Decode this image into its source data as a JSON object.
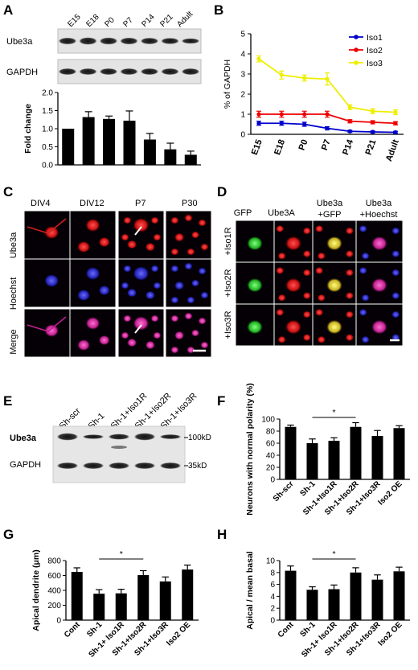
{
  "panels": {
    "A": {
      "label": "A"
    },
    "B": {
      "label": "B"
    },
    "C": {
      "label": "C"
    },
    "D": {
      "label": "D"
    },
    "E": {
      "label": "E"
    },
    "F": {
      "label": "F"
    },
    "G": {
      "label": "G"
    },
    "H": {
      "label": "H"
    }
  },
  "panel_a_blot": {
    "lanes": [
      "E15",
      "E18",
      "P0",
      "P7",
      "P14",
      "P21",
      "Adult"
    ],
    "row_labels": [
      "Ube3a",
      "GAPDH"
    ]
  },
  "panel_c": {
    "columns": [
      "DIV4",
      "DIV12",
      "P7",
      "P30"
    ],
    "rows": [
      "Ube3a",
      "Hoechst",
      "Merge"
    ]
  },
  "panel_d": {
    "columns": [
      {
        "line1": "GFP",
        "line2": ""
      },
      {
        "line1": "Ube3A",
        "line2": ""
      },
      {
        "line1": "Ube3a",
        "line2": "+GFP"
      },
      {
        "line1": "Ube3a",
        "line2": "+Hoechst"
      }
    ],
    "rows": [
      "+Iso1R",
      "+Iso2R",
      "+Iso3R"
    ]
  },
  "panel_e_blot": {
    "lanes": [
      "Sh-scr",
      "Sh-1",
      "Sh-1+Iso1R",
      "Sh-1+Iso2R",
      "Sh-1+Iso3R"
    ],
    "row_labels": [
      "Ube3a",
      "GAPDH"
    ],
    "markers": [
      "100kD",
      "35kD"
    ]
  },
  "chart_data": [
    {
      "id": "A",
      "type": "bar",
      "categories": [
        "E15",
        "E18",
        "P0",
        "P7",
        "P14",
        "P21",
        "Adult"
      ],
      "values": [
        1.0,
        1.32,
        1.27,
        1.22,
        0.7,
        0.43,
        0.28
      ],
      "errors": [
        0.0,
        0.15,
        0.08,
        0.27,
        0.17,
        0.17,
        0.1
      ],
      "ylabel": "Fold change",
      "ylim": [
        0,
        2.0
      ],
      "yticks": [
        "0.0",
        "0.5",
        "1.0",
        "1.5",
        "2.0"
      ],
      "color": "#000000"
    },
    {
      "id": "B",
      "type": "line",
      "x": [
        "E15",
        "E18",
        "P0",
        "P7",
        "P14",
        "P21",
        "Adult"
      ],
      "ylabel": "% of GAPDH",
      "ylim": [
        0,
        5
      ],
      "yticks": [
        "0",
        "1",
        "2",
        "3",
        "4",
        "5"
      ],
      "legend": "top-right",
      "series": [
        {
          "name": "Iso1",
          "color": "#0000cc",
          "values": [
            0.55,
            0.55,
            0.5,
            0.3,
            0.15,
            0.12,
            0.1
          ],
          "errors": [
            0.1,
            0.1,
            0.1,
            0.08,
            0.05,
            0.05,
            0.05
          ]
        },
        {
          "name": "Iso2",
          "color": "#ee0000",
          "values": [
            1.0,
            1.0,
            1.0,
            1.0,
            0.65,
            0.6,
            0.55
          ],
          "errors": [
            0.15,
            0.15,
            0.15,
            0.15,
            0.08,
            0.08,
            0.08
          ]
        },
        {
          "name": "Iso3",
          "color": "#eeee00",
          "values": [
            3.75,
            2.95,
            2.8,
            2.75,
            1.35,
            1.15,
            1.1
          ],
          "errors": [
            0.15,
            0.2,
            0.15,
            0.3,
            0.12,
            0.12,
            0.12
          ]
        }
      ]
    },
    {
      "id": "F",
      "type": "bar",
      "categories": [
        "Sh-scr",
        "Sh-1",
        "Sh-1+Iso1R",
        "Sh-1+Iso2R",
        "Sh-1+Iso3R",
        "Iso2 OE"
      ],
      "values": [
        87,
        60,
        64,
        87,
        72,
        85
      ],
      "errors": [
        3,
        7,
        5,
        7,
        9,
        4
      ],
      "ylabel": "Neurons with normal polarity (%)",
      "ylim": [
        0,
        100
      ],
      "yticks": [
        "0",
        "20",
        "40",
        "60",
        "80",
        "100"
      ],
      "significance": {
        "from": 1,
        "to": 3,
        "label": "*"
      },
      "color": "#000000"
    },
    {
      "id": "G",
      "type": "bar",
      "categories": [
        "Cont",
        "Sh-1",
        "Sh-1+ Iso1R",
        "Sh-1+Iso2R",
        "Sh-1+Iso3R",
        "Iso2 OE"
      ],
      "values": [
        648,
        355,
        360,
        605,
        520,
        680
      ],
      "errors": [
        55,
        55,
        55,
        60,
        60,
        60
      ],
      "ylabel": "Apical dendrite (μm)",
      "ylim": [
        0,
        800
      ],
      "yticks": [
        "0",
        "200",
        "400",
        "600",
        "800"
      ],
      "significance": {
        "from": 1,
        "to": 3,
        "label": "*"
      },
      "color": "#000000"
    },
    {
      "id": "H",
      "type": "bar",
      "categories": [
        "Cont",
        "Sh-1",
        "Sh-1+ Iso1R",
        "Sh-1+Iso2R",
        "Sh-1+Iso3R",
        "Iso2 OE"
      ],
      "values": [
        8.3,
        5.1,
        5.2,
        8.0,
        6.8,
        8.2
      ],
      "errors": [
        0.8,
        0.5,
        0.7,
        0.8,
        0.8,
        0.7
      ],
      "ylabel": "Apical / mean basal",
      "ylim": [
        0,
        10
      ],
      "yticks": [
        "0",
        "2",
        "4",
        "6",
        "8",
        "10"
      ],
      "significance": {
        "from": 1,
        "to": 3,
        "label": "*"
      },
      "color": "#000000"
    }
  ]
}
